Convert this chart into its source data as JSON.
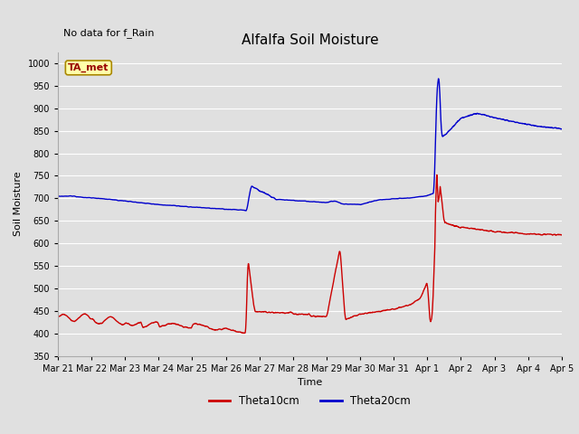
{
  "title": "Alfalfa Soil Moisture",
  "subtitle": "No data for f_Rain",
  "xlabel": "Time",
  "ylabel": "Soil Moisture",
  "ylim": [
    350,
    1025
  ],
  "yticks": [
    350,
    400,
    450,
    500,
    550,
    600,
    650,
    700,
    750,
    800,
    850,
    900,
    950,
    1000
  ],
  "bg_color": "#e0e0e0",
  "plot_bg_color": "#e0e0e0",
  "grid_color": "#ffffff",
  "line1_color": "#cc0000",
  "line2_color": "#0000cc",
  "legend_label1": "Theta10cm",
  "legend_label2": "Theta20cm",
  "ta_met_box_color": "#ffffaa",
  "ta_met_text_color": "#990000",
  "title_fontsize": 11,
  "label_fontsize": 8,
  "tick_fontsize": 7
}
